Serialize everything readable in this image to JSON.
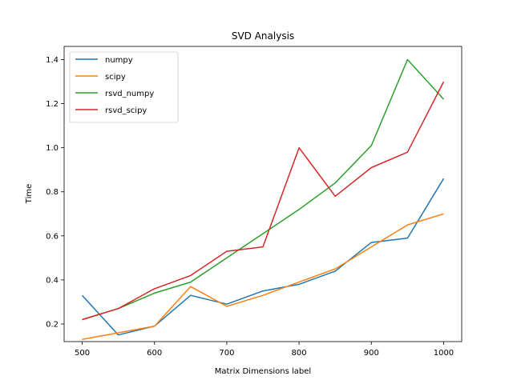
{
  "chart_data": {
    "type": "line",
    "title": "SVD Analysis",
    "xlabel": "Matrix Dimensions label",
    "ylabel": "Time",
    "xlim": [
      475,
      1025
    ],
    "ylim": [
      0.12,
      1.46
    ],
    "xticks": [
      500,
      600,
      700,
      800,
      900,
      1000
    ],
    "yticks": [
      0.2,
      0.4,
      0.6,
      0.8,
      1.0,
      1.2,
      1.4
    ],
    "ytick_labels": [
      "0.2",
      "0.4",
      "0.6",
      "0.8",
      "1.0",
      "1.2",
      "1.4"
    ],
    "grid": false,
    "legend_position": "top-left",
    "x": [
      500,
      550,
      600,
      650,
      700,
      750,
      800,
      850,
      900,
      950,
      1000
    ],
    "series": [
      {
        "name": "numpy",
        "color": "#1f77b4",
        "values": [
          0.33,
          0.15,
          0.19,
          0.33,
          0.29,
          0.35,
          0.38,
          0.44,
          0.57,
          0.59,
          0.86
        ]
      },
      {
        "name": "scipy",
        "color": "#ff7f0e",
        "values": [
          0.13,
          0.16,
          0.19,
          0.37,
          0.28,
          0.33,
          0.39,
          0.45,
          0.55,
          0.65,
          0.7
        ]
      },
      {
        "name": "rsvd_numpy",
        "color": "#2ca02c",
        "values": [
          0.22,
          0.27,
          0.34,
          0.39,
          0.5,
          0.61,
          0.72,
          0.84,
          1.01,
          1.4,
          1.22
        ]
      },
      {
        "name": "rsvd_scipy",
        "color": "#d62728",
        "values": [
          0.22,
          0.27,
          0.36,
          0.42,
          0.53,
          0.55,
          1.0,
          0.78,
          0.91,
          0.98,
          1.3
        ]
      }
    ]
  }
}
